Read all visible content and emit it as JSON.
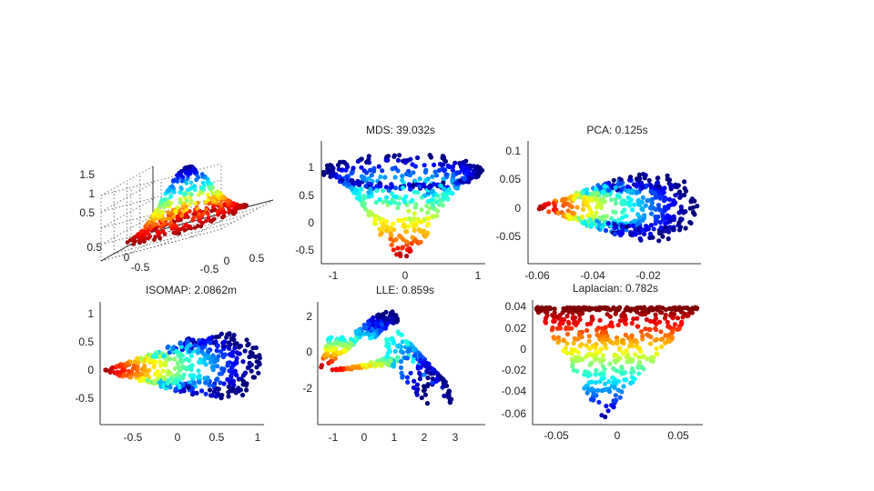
{
  "chart_data": [
    {
      "type": "scatter3d",
      "title": "",
      "xticks": [
        "0.5",
        "0",
        "-0.5"
      ],
      "yticks": [
        "-0.5",
        "0",
        "0.5"
      ],
      "zticks": [
        "1.5",
        "1",
        "0.5"
      ],
      "xlim": [
        -1,
        1
      ],
      "ylim": [
        -1,
        1
      ],
      "zlim": [
        0,
        1.8
      ],
      "grid": true,
      "colormap": "jet"
    },
    {
      "type": "scatter",
      "title": "MDS: 39.032s",
      "xticks": [
        "-1",
        "0",
        "1"
      ],
      "yticks": [
        "1",
        "0.5",
        "0",
        "-0.5"
      ],
      "xlim": [
        -1.2,
        1.05
      ],
      "ylim": [
        -0.78,
        1.42
      ],
      "colormap": "jet"
    },
    {
      "type": "scatter",
      "title": "PCA: 0.125s",
      "xticks": [
        "-0.06",
        "-0.04",
        "-0.02"
      ],
      "yticks": [
        "0.1",
        "0.05",
        "0",
        "-0.05"
      ],
      "xlim": [
        -0.062,
        0.0
      ],
      "ylim": [
        -0.098,
        0.123
      ],
      "colormap": "jet"
    },
    {
      "type": "scatter",
      "title": "ISOMAP: 2.0862m",
      "xticks": [
        "-0.5",
        "0",
        "0.5",
        "1"
      ],
      "yticks": [
        "1",
        "0.5",
        "0",
        "-0.5"
      ],
      "xlim": [
        -0.88,
        1.12
      ],
      "ylim": [
        -0.98,
        1.18
      ],
      "colormap": "jet"
    },
    {
      "type": "scatter",
      "title": "LLE: 0.859s",
      "xticks": [
        "-1",
        "0",
        "1",
        "2",
        "3"
      ],
      "yticks": [
        "2",
        "0",
        "-2"
      ],
      "xlim": [
        -1.6,
        3.9
      ],
      "ylim": [
        -4.1,
        2.75
      ],
      "colormap": "jet"
    },
    {
      "type": "scatter",
      "title": "Laplacian: 0.782s",
      "xticks": [
        "-0.05",
        "0",
        "0.05"
      ],
      "yticks": [
        "0.04",
        "0.02",
        "0",
        "-0.02",
        "-0.04",
        "-0.06"
      ],
      "xlim": [
        -0.066,
        0.068
      ],
      "ylim": [
        -0.067,
        0.043
      ],
      "colormap": "jet"
    }
  ]
}
